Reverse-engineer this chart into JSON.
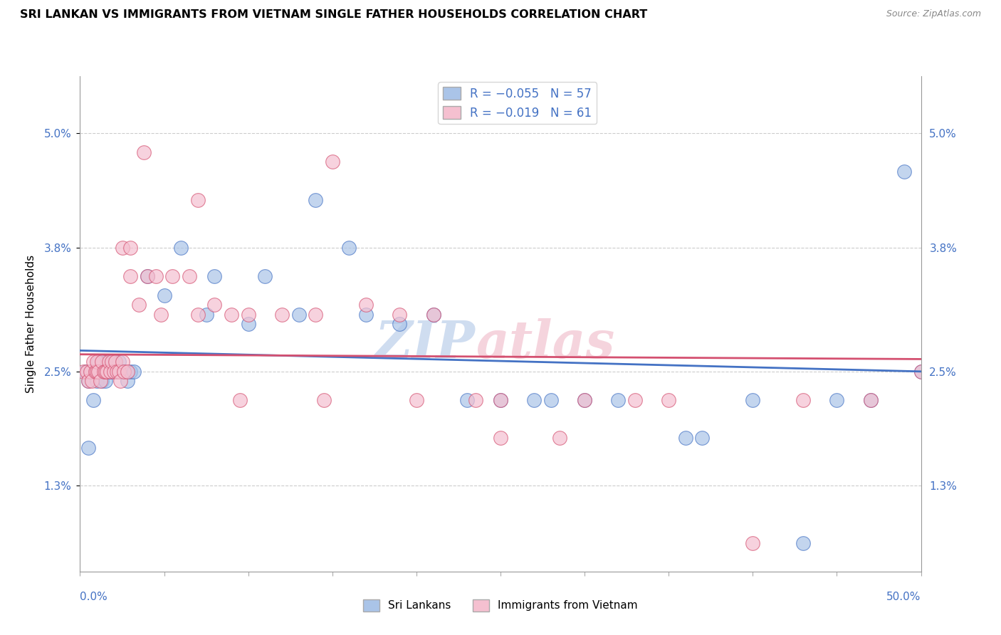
{
  "title": "SRI LANKAN VS IMMIGRANTS FROM VIETNAM SINGLE FATHER HOUSEHOLDS CORRELATION CHART",
  "source": "Source: ZipAtlas.com",
  "ylabel": "Single Father Households",
  "ytick_vals": [
    1.3,
    2.5,
    3.8,
    5.0
  ],
  "xmin": 0.0,
  "xmax": 50.0,
  "ymin": 0.4,
  "ymax": 5.6,
  "scatter1_label": "Sri Lankans",
  "scatter2_label": "Immigrants from Vietnam",
  "color1": "#aac4e8",
  "color2": "#f5c0d0",
  "line1_color": "#4472c4",
  "line2_color": "#d45070",
  "watermark_zip": "ZIP",
  "watermark_atlas": "atlas",
  "sri_lankans_x": [
    0.3,
    0.5,
    0.5,
    0.6,
    0.7,
    0.8,
    0.9,
    1.0,
    1.0,
    1.1,
    1.2,
    1.3,
    1.3,
    1.4,
    1.5,
    1.5,
    1.6,
    1.7,
    1.8,
    1.9,
    2.0,
    2.1,
    2.2,
    2.3,
    2.4,
    2.5,
    2.6,
    2.8,
    3.0,
    3.2,
    4.0,
    5.0,
    6.0,
    7.5,
    8.0,
    10.0,
    11.0,
    13.0,
    14.0,
    16.0,
    17.0,
    19.0,
    21.0,
    23.0,
    25.0,
    28.0,
    32.0,
    36.0,
    40.0,
    43.0,
    45.0,
    47.0,
    49.0,
    50.0,
    27.0,
    30.0,
    37.0
  ],
  "sri_lankans_y": [
    2.5,
    2.4,
    1.7,
    2.5,
    2.5,
    2.2,
    2.5,
    2.4,
    2.5,
    2.6,
    2.5,
    2.5,
    2.4,
    2.6,
    2.5,
    2.4,
    2.6,
    2.5,
    2.5,
    2.5,
    2.6,
    2.5,
    2.5,
    2.6,
    2.5,
    2.5,
    2.5,
    2.4,
    2.5,
    2.5,
    3.5,
    3.3,
    3.8,
    3.1,
    3.5,
    3.0,
    3.5,
    3.1,
    4.3,
    3.8,
    3.1,
    3.0,
    3.1,
    2.2,
    2.2,
    2.2,
    2.2,
    1.8,
    2.2,
    0.7,
    2.2,
    2.2,
    4.6,
    2.5,
    2.2,
    2.2,
    1.8
  ],
  "vietnam_x": [
    0.2,
    0.4,
    0.5,
    0.6,
    0.7,
    0.8,
    0.9,
    1.0,
    1.0,
    1.1,
    1.2,
    1.3,
    1.4,
    1.5,
    1.6,
    1.7,
    1.8,
    1.9,
    2.0,
    2.1,
    2.2,
    2.3,
    2.4,
    2.5,
    2.6,
    2.8,
    3.0,
    3.5,
    4.0,
    4.5,
    5.5,
    6.5,
    7.0,
    8.0,
    9.0,
    10.0,
    12.0,
    14.0,
    15.0,
    17.0,
    19.0,
    21.0,
    23.5,
    25.0,
    28.5,
    33.0,
    2.5,
    3.0,
    4.8,
    7.0,
    9.5,
    14.5,
    20.0,
    25.0,
    30.0,
    35.0,
    40.0,
    43.0,
    47.0,
    50.0,
    3.8
  ],
  "vietnam_y": [
    2.5,
    2.5,
    2.4,
    2.5,
    2.4,
    2.6,
    2.5,
    2.5,
    2.6,
    2.5,
    2.4,
    2.6,
    2.5,
    2.5,
    2.5,
    2.6,
    2.5,
    2.6,
    2.5,
    2.6,
    2.5,
    2.5,
    2.4,
    2.6,
    2.5,
    2.5,
    3.5,
    3.2,
    3.5,
    3.5,
    3.5,
    3.5,
    4.3,
    3.2,
    3.1,
    3.1,
    3.1,
    3.1,
    4.7,
    3.2,
    3.1,
    3.1,
    2.2,
    2.2,
    1.8,
    2.2,
    3.8,
    3.8,
    3.1,
    3.1,
    2.2,
    2.2,
    2.2,
    1.8,
    2.2,
    2.2,
    0.7,
    2.2,
    2.2,
    2.5,
    4.8
  ]
}
